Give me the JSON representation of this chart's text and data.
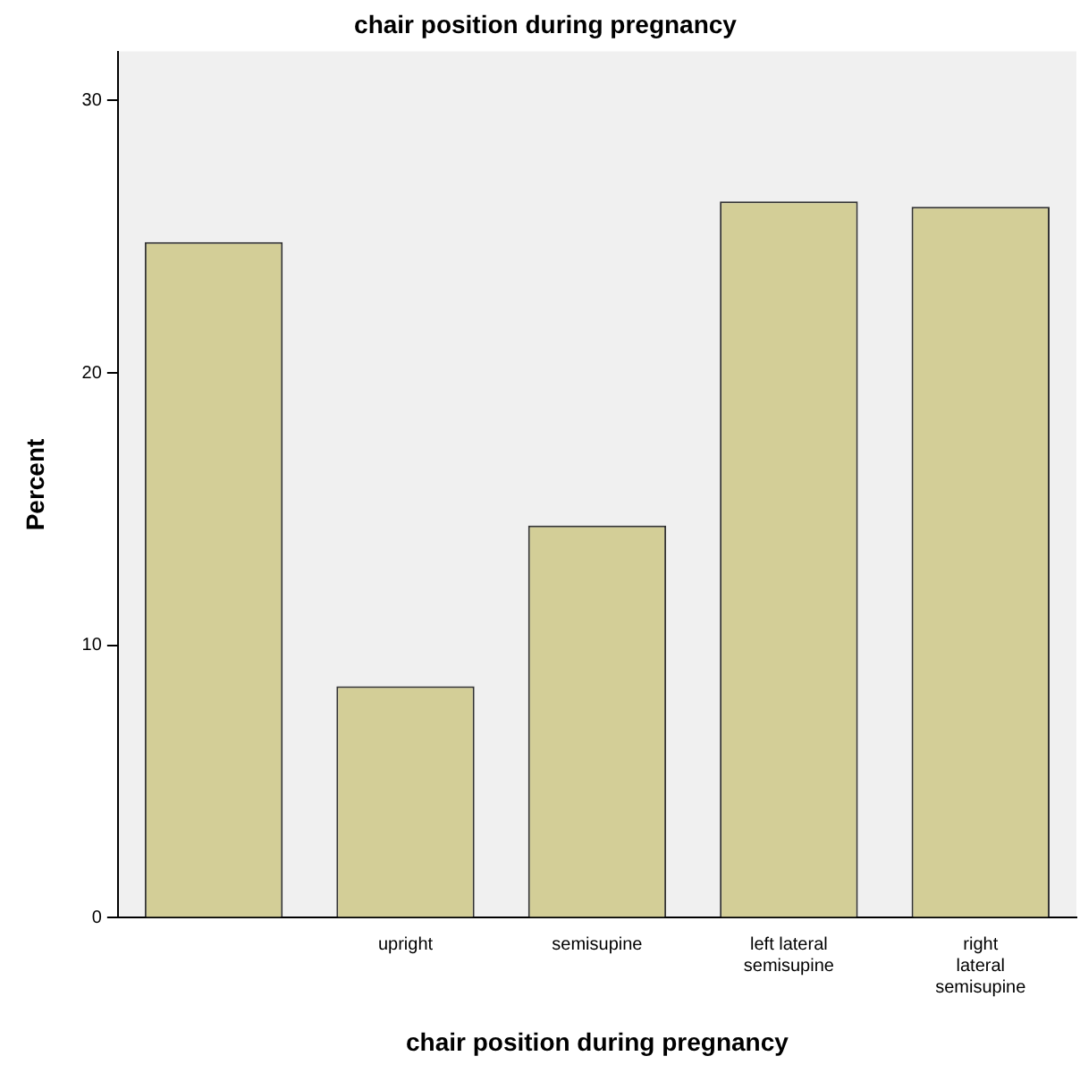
{
  "chart_data": {
    "type": "bar",
    "title": "chair position during pregnancy",
    "xlabel": "chair position during pregnancy",
    "ylabel": "Percent",
    "categories": [
      null,
      "upright",
      "semisupine",
      "left lateral semisupine",
      "right lateral semisupine"
    ],
    "values": [
      24.8,
      8.5,
      14.4,
      26.3,
      26.1
    ],
    "color": "#d3ce97",
    "ylim": [
      0,
      31.8
    ],
    "yticks": [
      0,
      10,
      20,
      30
    ],
    "grid": false,
    "legend": false
  }
}
